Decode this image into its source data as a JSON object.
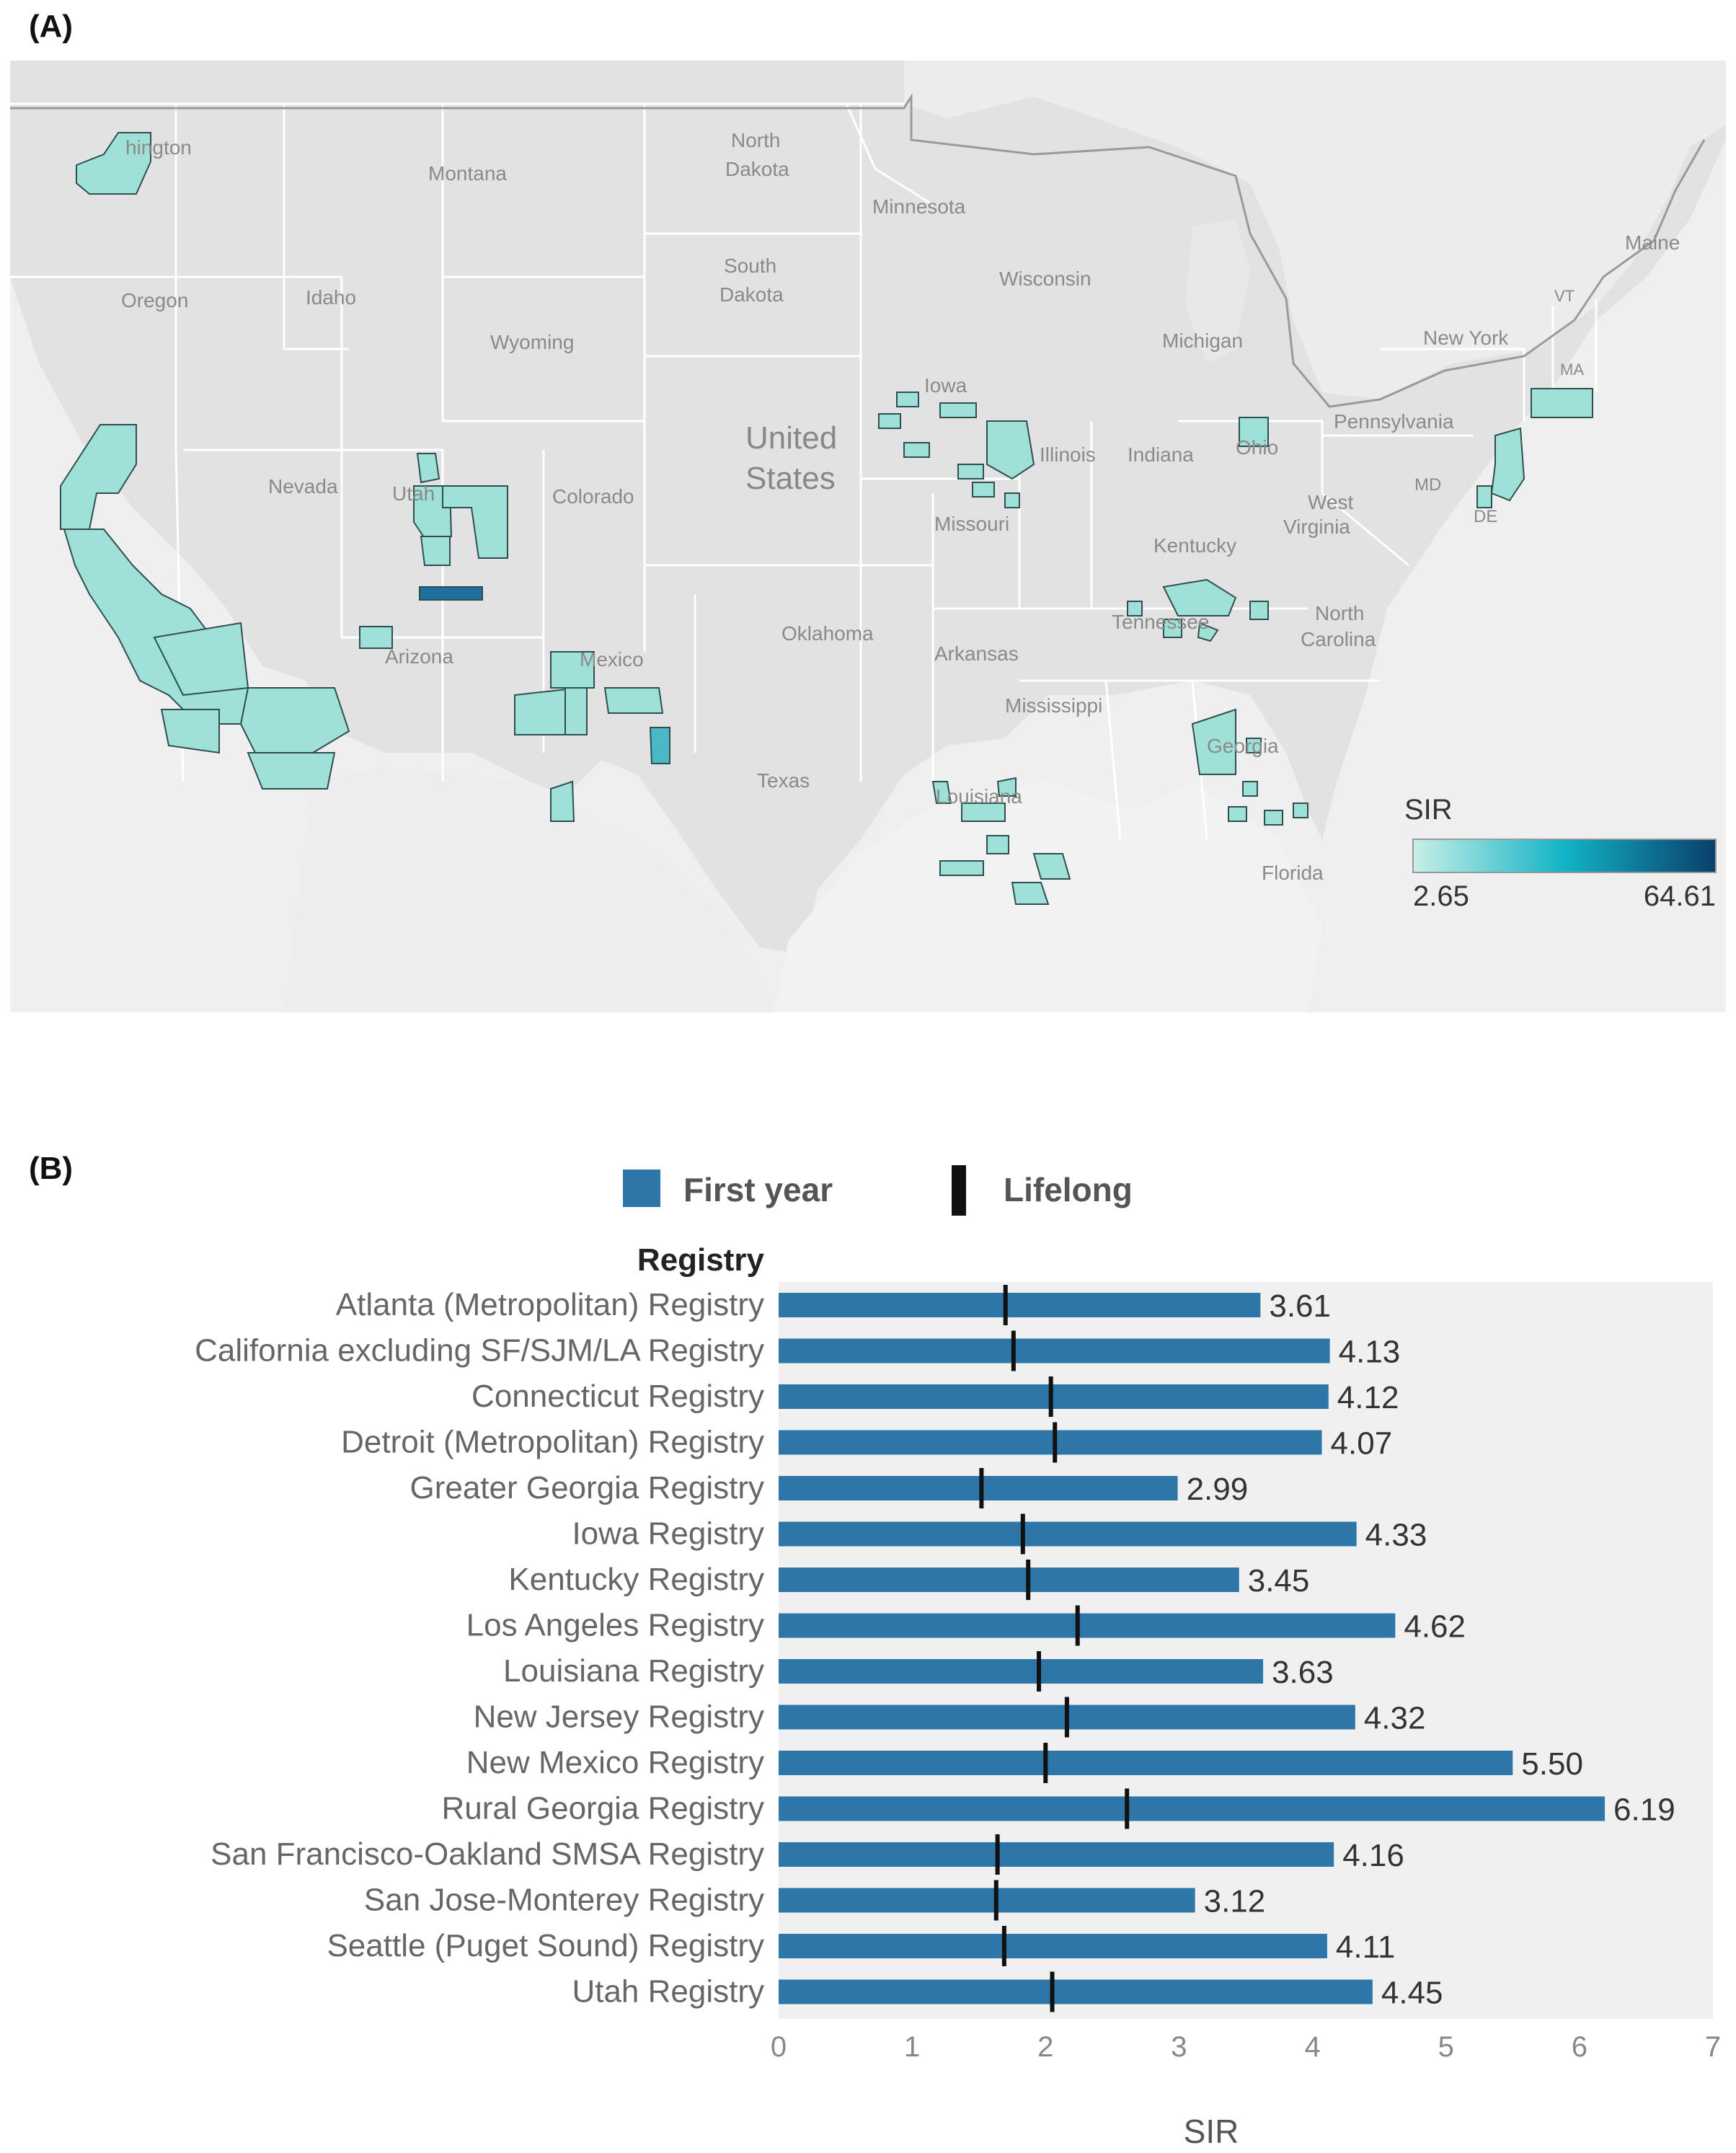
{
  "panels": {
    "a_label": "(A)",
    "b_label": "(B)"
  },
  "map": {
    "country_label": [
      "United",
      "States"
    ],
    "state_labels": [
      {
        "text": "Washington",
        "shown": "hington"
      },
      {
        "text": "Montana"
      },
      {
        "text": "North"
      },
      {
        "text": "Dakota"
      },
      {
        "text": "Minnesota"
      },
      {
        "text": "South"
      },
      {
        "text": "Dakota"
      },
      {
        "text": "Wisconsin"
      },
      {
        "text": "Michigan"
      },
      {
        "text": "Oregon"
      },
      {
        "text": "Idaho"
      },
      {
        "text": "Wyoming"
      },
      {
        "text": "Iowa"
      },
      {
        "text": "Nevada"
      },
      {
        "text": "Utah"
      },
      {
        "text": "Colorado"
      },
      {
        "text": "Illinois"
      },
      {
        "text": "Indiana"
      },
      {
        "text": "Ohio"
      },
      {
        "text": "Pennsylvania"
      },
      {
        "text": "New York"
      },
      {
        "text": "Maine"
      },
      {
        "text": "VT"
      },
      {
        "text": "MA"
      },
      {
        "text": "MD"
      },
      {
        "text": "DE"
      },
      {
        "text": "West"
      },
      {
        "text": "Virginia"
      },
      {
        "text": "Missouri"
      },
      {
        "text": "Kentucky"
      },
      {
        "text": "Arizona"
      },
      {
        "text": "Mexico"
      },
      {
        "text": "Oklahoma"
      },
      {
        "text": "Arkansas"
      },
      {
        "text": "Tennessee"
      },
      {
        "text": "North"
      },
      {
        "text": "Carolina"
      },
      {
        "text": "Mississippi"
      },
      {
        "text": "Georgia"
      },
      {
        "text": "Texas"
      },
      {
        "text": "Louisiana"
      },
      {
        "text": "Florida"
      }
    ],
    "legend": {
      "title": "SIR",
      "min": "2.65",
      "max": "64.61",
      "color_low": "#c8efe6",
      "color_mid": "#12b3c6",
      "color_high": "#0a3f6b"
    },
    "region_fill": "#9fe1d8",
    "region_fill_dark": "#1f6f9f",
    "land_color": "#e3e3e3",
    "border_color": "#ffffff"
  },
  "chart_data": {
    "type": "bar",
    "title": "",
    "legend": [
      {
        "name": "First year",
        "color": "#2e76a8",
        "marker": "square"
      },
      {
        "name": "Lifelong",
        "color": "#111111",
        "marker": "tick"
      }
    ],
    "row_header": "Registry",
    "xlabel": "SIR",
    "xlim": [
      0,
      7
    ],
    "xticks": [
      "0",
      "1",
      "2",
      "3",
      "4",
      "5",
      "6",
      "7"
    ],
    "categories": [
      "Atlanta (Metropolitan) Registry",
      "California excluding SF/SJM/LA Registry",
      "Connecticut Registry",
      "Detroit (Metropolitan) Registry",
      "Greater Georgia Registry",
      "Iowa Registry",
      "Kentucky Registry",
      "Los Angeles Registry",
      "Louisiana Registry",
      "New Jersey Registry",
      "New Mexico Registry",
      "Rural Georgia Registry",
      "San Francisco-Oakland SMSA Registry",
      "San Jose-Monterey Registry",
      "Seattle (Puget Sound) Registry",
      "Utah Registry"
    ],
    "series": [
      {
        "name": "First year",
        "values": [
          3.61,
          4.13,
          4.12,
          4.07,
          2.99,
          4.33,
          3.45,
          4.62,
          3.63,
          4.32,
          5.5,
          6.19,
          4.16,
          3.12,
          4.11,
          4.45
        ],
        "labels": [
          "3.61",
          "4.13",
          "4.12",
          "4.07",
          "2.99",
          "4.33",
          "3.45",
          "4.62",
          "3.63",
          "4.32",
          "5.50",
          "6.19",
          "4.16",
          "3.12",
          "4.11",
          "4.45"
        ]
      },
      {
        "name": "Lifelong",
        "values": [
          1.7,
          1.76,
          2.04,
          2.07,
          1.52,
          1.83,
          1.87,
          2.24,
          1.95,
          2.16,
          2.0,
          2.61,
          1.64,
          1.63,
          1.69,
          2.05
        ]
      }
    ],
    "grid": false
  }
}
